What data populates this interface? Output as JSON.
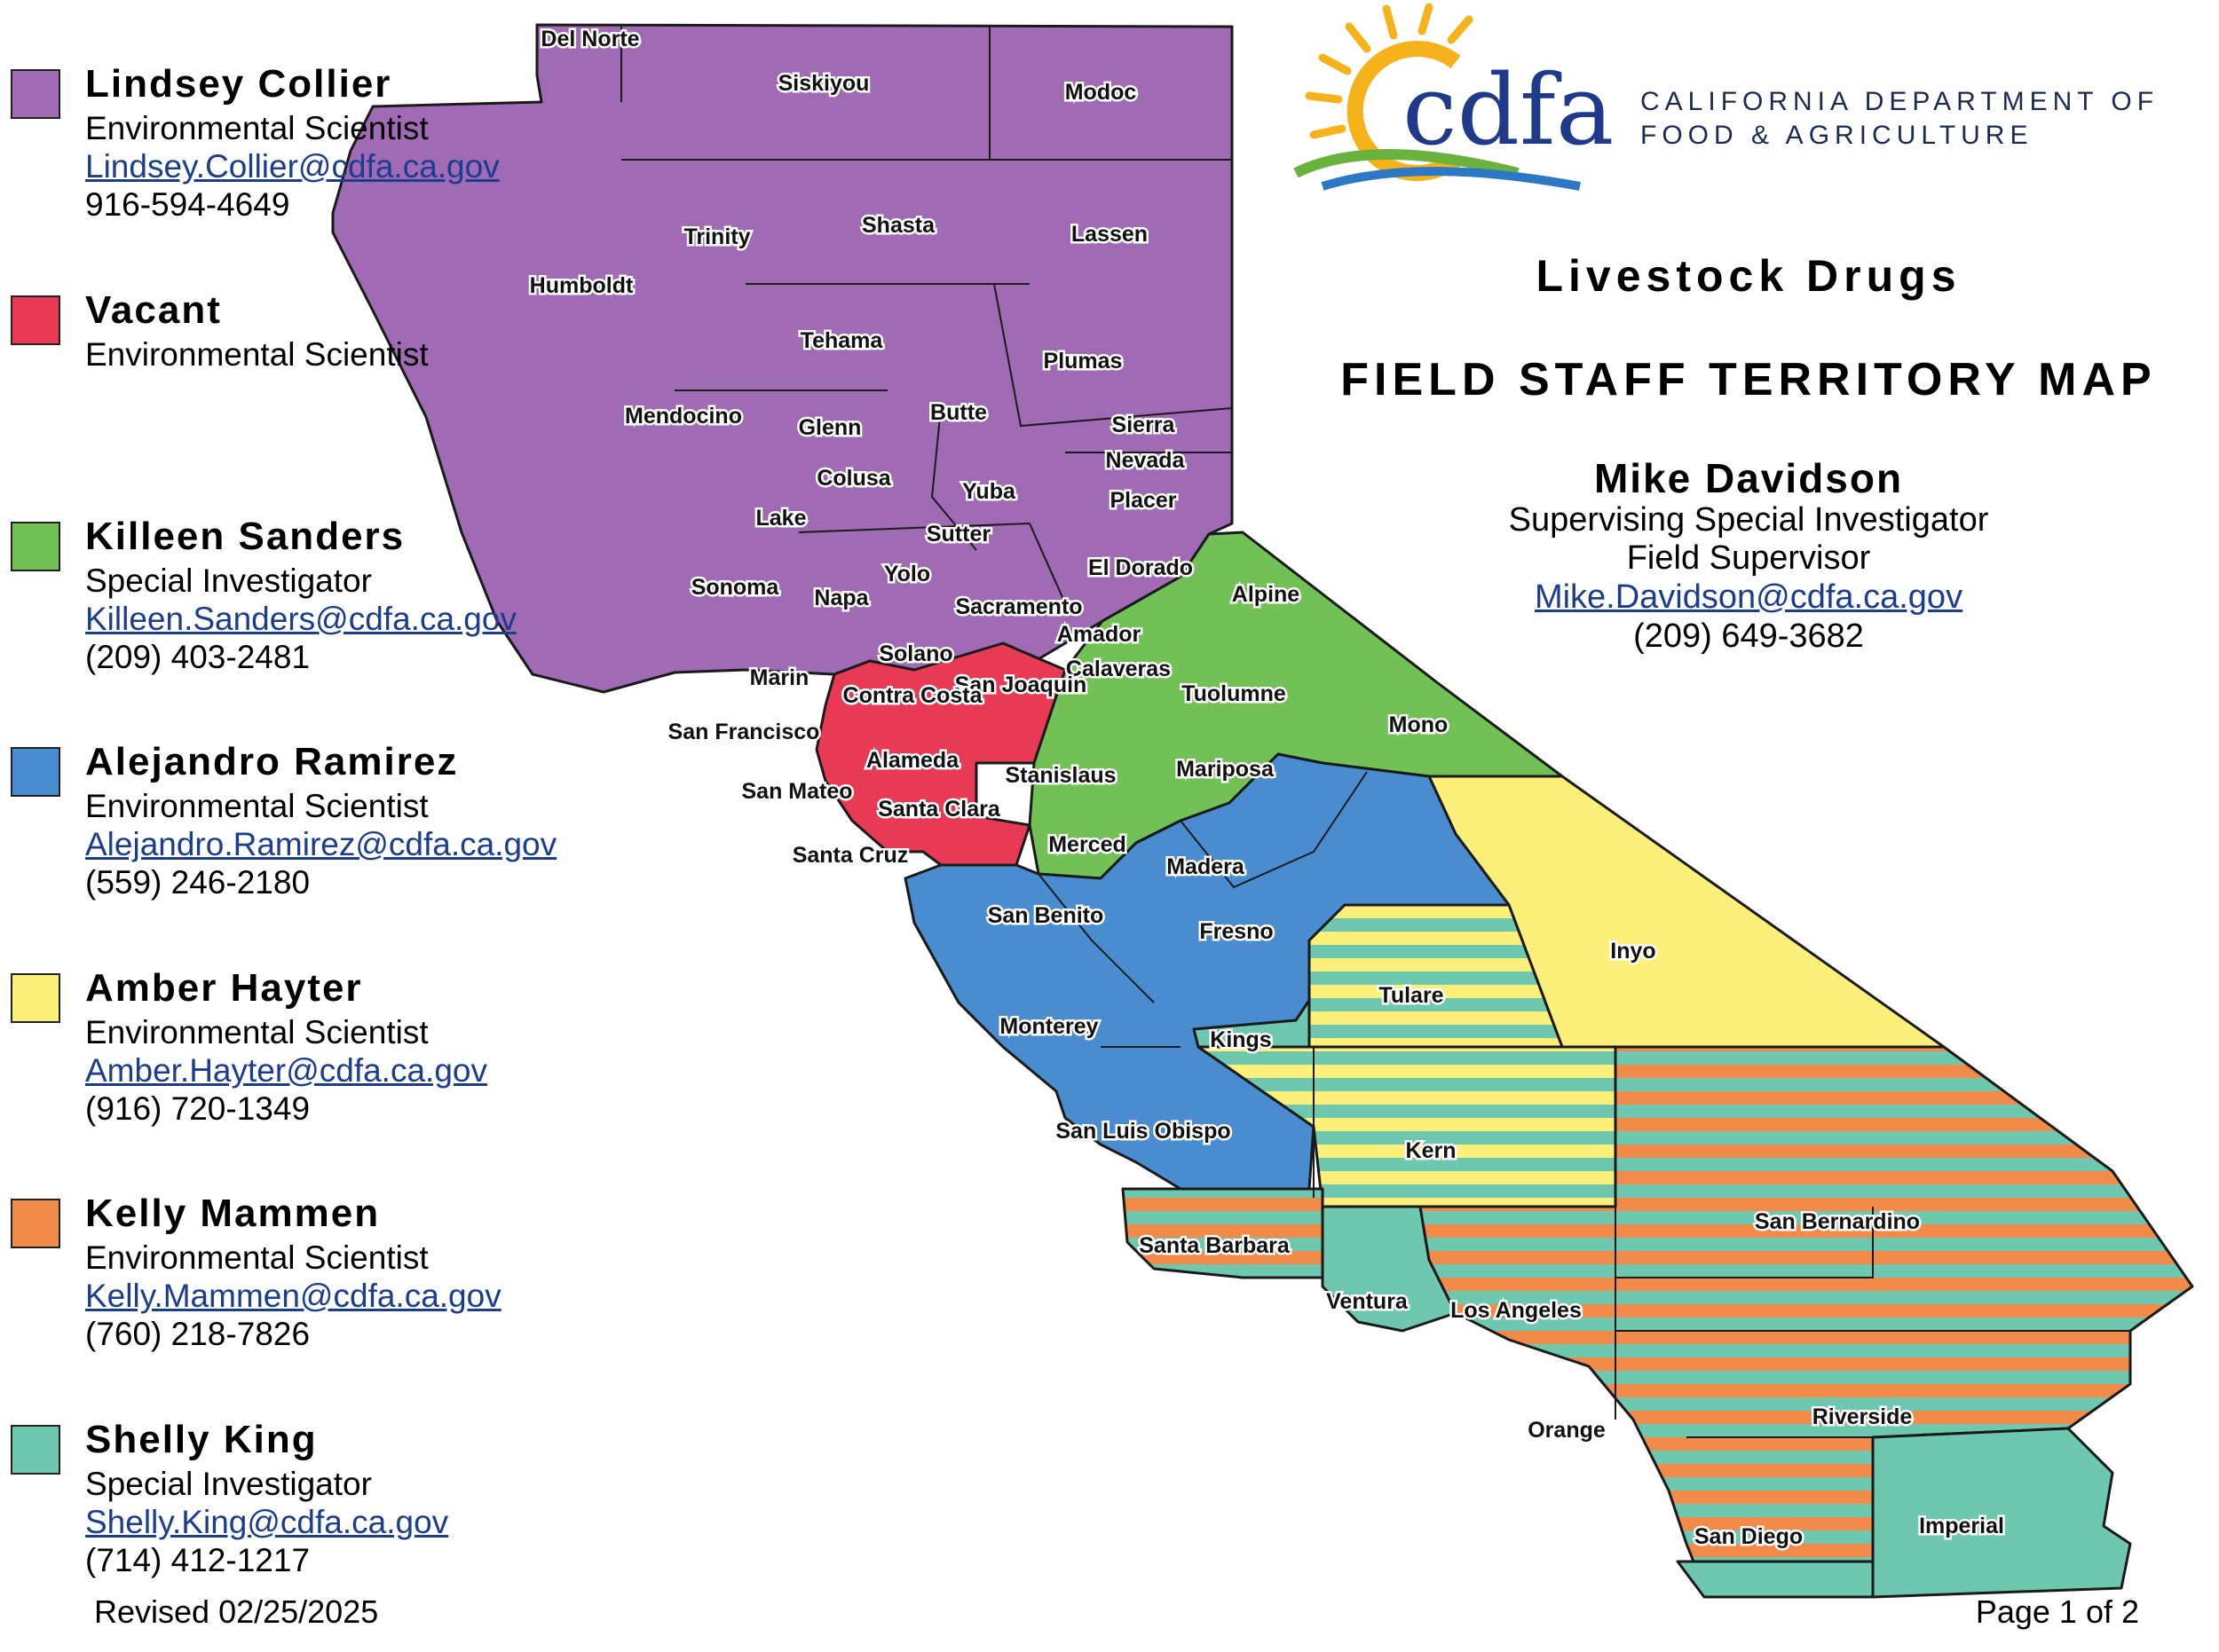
{
  "agency": {
    "logo_text": "cdfa",
    "name_line1": "CALIFORNIA DEPARTMENT OF",
    "name_line2": "FOOD & AGRICULTURE"
  },
  "title": {
    "program": "Livestock Drugs",
    "map_title": "FIELD STAFF TERRITORY MAP"
  },
  "supervisor": {
    "name": "Mike Davidson",
    "title1": "Supervising Special Investigator",
    "title2": "Field Supervisor",
    "email": "Mike.Davidson@cdfa.ca.gov",
    "phone": "(209) 649-3682"
  },
  "staff": [
    {
      "name": "Lindsey Collier",
      "role": "Environmental Scientist",
      "email": "Lindsey.Collier@cdfa.ca.gov",
      "phone": "916-594-4649",
      "color": "#a06bb4"
    },
    {
      "name": "Vacant",
      "role": "Environmental Scientist",
      "email": "",
      "phone": "",
      "color": "#e83a55"
    },
    {
      "name": "Killeen Sanders",
      "role": "Special Investigator",
      "email": "Killeen.Sanders@cdfa.ca.gov",
      "phone": "(209) 403-2481",
      "color": "#72c156"
    },
    {
      "name": "Alejandro Ramirez",
      "role": "Environmental Scientist",
      "email": "Alejandro.Ramirez@cdfa.ca.gov",
      "phone": "(559) 246-2180",
      "color": "#4a8cd0"
    },
    {
      "name": "Amber Hayter",
      "role": "Environmental Scientist",
      "email": "Amber.Hayter@cdfa.ca.gov",
      "phone": "(916) 720-1349",
      "color": "#fcef7a"
    },
    {
      "name": "Kelly Mammen",
      "role": "Environmental Scientist",
      "email": "Kelly.Mammen@cdfa.ca.gov",
      "phone": "(760) 218-7826",
      "color": "#f28b4a"
    },
    {
      "name": "Shelly King",
      "role": "Special Investigator",
      "email": "Shelly.King@cdfa.ca.gov",
      "phone": "(714) 412-1217",
      "color": "#6ec8b0"
    }
  ],
  "counties": {
    "del_norte": "Del Norte",
    "siskiyou": "Siskiyou",
    "modoc": "Modoc",
    "humboldt": "Humboldt",
    "trinity": "Trinity",
    "shasta": "Shasta",
    "lassen": "Lassen",
    "tehama": "Tehama",
    "plumas": "Plumas",
    "mendocino": "Mendocino",
    "glenn": "Glenn",
    "butte": "Butte",
    "sierra": "Sierra",
    "nevada": "Nevada",
    "colusa": "Colusa",
    "yuba": "Yuba",
    "placer": "Placer",
    "lake": "Lake",
    "sutter": "Sutter",
    "yolo": "Yolo",
    "el_dorado": "El Dorado",
    "sonoma": "Sonoma",
    "napa": "Napa",
    "sacramento": "Sacramento",
    "alpine": "Alpine",
    "amador": "Amador",
    "solano": "Solano",
    "marin": "Marin",
    "calaveras": "Calaveras",
    "san_joaquin": "San Joaquin",
    "contra_costa": "Contra Costa",
    "tuolumne": "Tuolumne",
    "mono": "Mono",
    "san_francisco": "San Francisco",
    "alameda": "Alameda",
    "stanislaus": "Stanislaus",
    "mariposa": "Mariposa",
    "san_mateo": "San Mateo",
    "santa_clara": "Santa Clara",
    "merced": "Merced",
    "santa_cruz": "Santa Cruz",
    "madera": "Madera",
    "san_benito": "San Benito",
    "fresno": "Fresno",
    "inyo": "Inyo",
    "tulare": "Tulare",
    "monterey": "Monterey",
    "kings": "Kings",
    "san_luis_obispo": "San Luis Obispo",
    "kern": "Kern",
    "san_bernardino": "San Bernardino",
    "santa_barbara": "Santa Barbara",
    "ventura": "Ventura",
    "los_angeles": "Los Angeles",
    "orange": "Orange",
    "riverside": "Riverside",
    "san_diego": "San Diego",
    "imperial": "Imperial"
  },
  "footer": {
    "revised": "Revised 02/25/2025",
    "page": "Page 1 of 2"
  }
}
